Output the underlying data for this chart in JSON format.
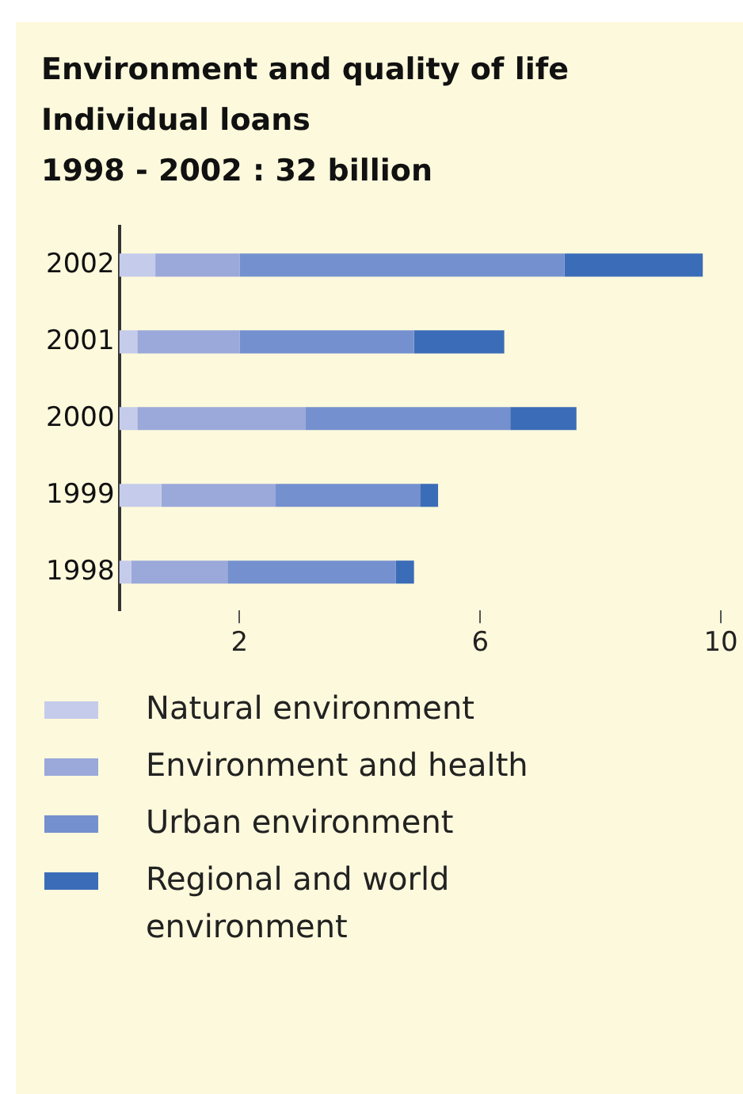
{
  "chart_data": {
    "type": "bar",
    "orientation": "horizontal",
    "stacked": true,
    "title": "Environment and quality of life\nIndividual loans\n1998 - 2002 : 32 billion",
    "categories": [
      "2002",
      "2001",
      "2000",
      "1999",
      "1998"
    ],
    "series": [
      {
        "name": "Natural environment",
        "color": "#c5cbea",
        "values": [
          0.6,
          0.3,
          0.3,
          0.7,
          0.2
        ]
      },
      {
        "name": "Environment and health",
        "color": "#9aa8da",
        "values": [
          1.4,
          1.7,
          2.8,
          1.9,
          1.6
        ]
      },
      {
        "name": "Urban environment",
        "color": "#7490cf",
        "values": [
          5.4,
          2.9,
          3.4,
          2.4,
          2.8
        ]
      },
      {
        "name": "Regional and world environment",
        "color": "#3b6cb8",
        "values": [
          2.3,
          1.5,
          1.1,
          0.3,
          0.3
        ]
      }
    ],
    "xlim": [
      0,
      10
    ],
    "xticks": [
      2,
      6,
      10
    ],
    "grid": false,
    "legend": "bottom"
  }
}
